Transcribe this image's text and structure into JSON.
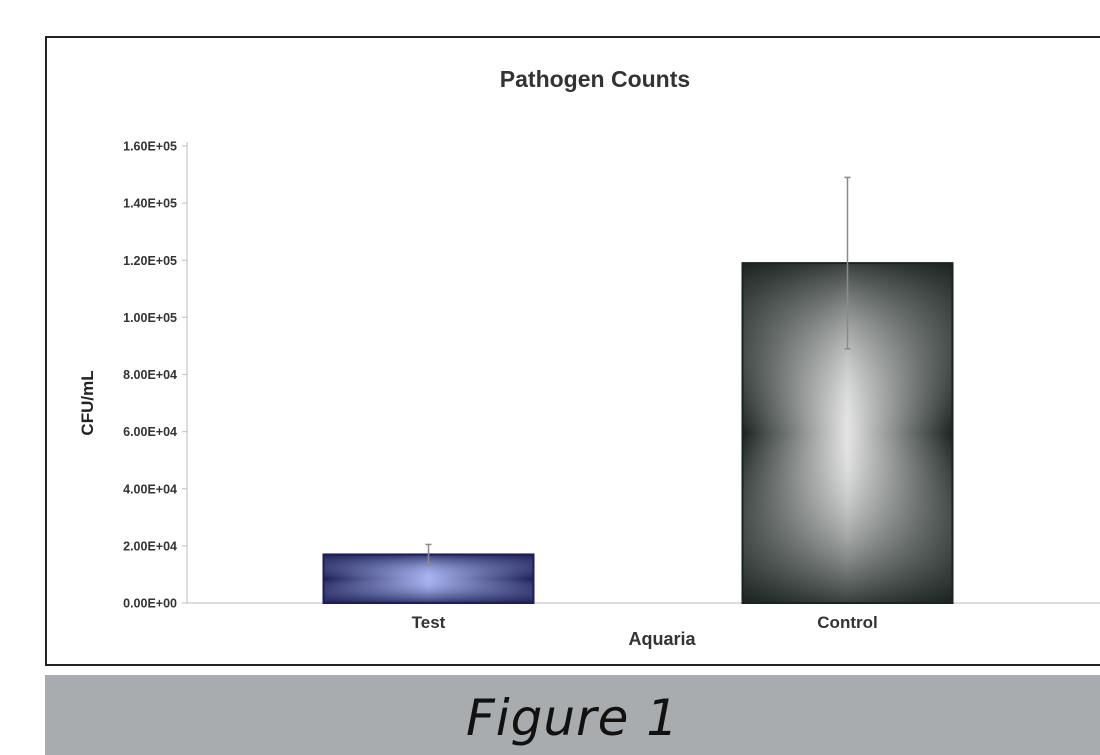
{
  "chart_data": {
    "type": "bar",
    "title": "Pathogen Counts",
    "xlabel": "Aquaria",
    "ylabel": "CFU/mL",
    "categories": [
      "Test",
      "Control"
    ],
    "values": [
      17000,
      119000
    ],
    "error_bars": [
      3500,
      30000
    ],
    "ylim": [
      0,
      160000
    ],
    "yticks": [
      0,
      20000,
      40000,
      60000,
      80000,
      100000,
      120000,
      140000,
      160000
    ],
    "ytick_labels": [
      "0.00E+00",
      "2.00E+04",
      "4.00E+04",
      "6.00E+04",
      "8.00E+04",
      "1.00E+05",
      "1.20E+05",
      "1.40E+05",
      "1.60E+05"
    ],
    "grid": false,
    "legend": "none",
    "bar_colors": [
      {
        "edge": "#1c1f55",
        "center": "#a9b4f0"
      },
      {
        "edge": "#1a2320",
        "center": "#e4e4e4"
      }
    ]
  },
  "figure_caption": "Figure 1"
}
